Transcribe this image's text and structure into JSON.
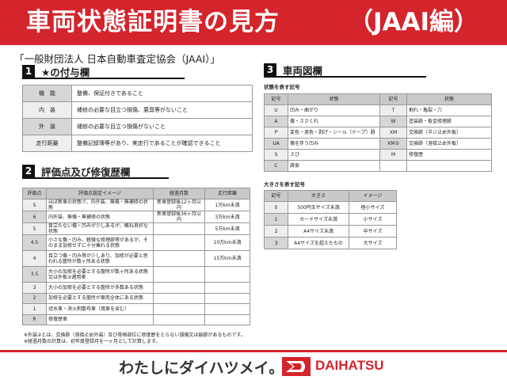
{
  "title": {
    "main": "車両状態証明書の見方",
    "suffix": "（JAAI編）"
  },
  "subtitle": "「一般財団法人 日本自動車査定協会（JAAI）」",
  "section1": {
    "num": "1",
    "title": "★の付与欄",
    "rows": [
      {
        "k": "機　能",
        "v": "整備、保証付きであること"
      },
      {
        "k": "内　装",
        "v": "補修の必要な目立つ損傷、悪臭等がないこと"
      },
      {
        "k": "外　装",
        "v": "補修の必要な目立つ損傷がないこと"
      },
      {
        "k": "走行距離",
        "v": "整備記録簿等があり、実走行であることが確認できること"
      }
    ]
  },
  "section2": {
    "num": "2",
    "title": "評価点及び修復歴欄",
    "headers": [
      "評価点",
      "評価点設定イメージ",
      "経過月数",
      "走行距離"
    ],
    "rows": [
      [
        "S",
        "ほぼ新車の状態で、内外装、無傷・無補修の状態",
        "新車登録後12ヶ月以内",
        "1万km未満"
      ],
      [
        "6",
        "内外装、無傷・無補修の状態",
        "新車登録後36ヶ月以内",
        "3万km未満"
      ],
      [
        "5",
        "目立たない傷・凹みが少しあるが、概ね良好な状態",
        "",
        "5万km未満"
      ],
      [
        "4.5",
        "小さな傷・凹み、軽微な修理跡等があるが、そのまま加修せずに十分乗れる状態",
        "",
        "10万km未満"
      ],
      [
        "4",
        "目立つ傷・凹み等が少しあり、加修が必要と思われる箇所が数ヶ所ある状態",
        "",
        "15万km未満"
      ],
      [
        "3.5",
        "大小の加修を必要とする箇所が数ヶ所ある状態又は外板②適用車",
        "",
        ""
      ],
      [
        "3",
        "大小の加修を必要とする箇所が多数ある状態",
        "",
        ""
      ],
      [
        "2",
        "加修を必要とする箇所が車両全体にある状態",
        "",
        ""
      ],
      [
        "1",
        "冠水車・消火剤散布車（焼車を含む）",
        "",
        ""
      ],
      [
        "R",
        "修復歴車",
        "",
        ""
      ]
    ]
  },
  "section3": {
    "num": "3",
    "title": "車両図欄",
    "state_caption": "状態を表す記号",
    "state_headers": [
      "記号",
      "状態",
      "記号",
      "状態"
    ],
    "state_rows": [
      [
        "U",
        "凹み・曲がり",
        "T",
        "割れ・亀裂・穴"
      ],
      [
        "A",
        "傷・ささくれ",
        "W",
        "塗装跡・板金修理跡"
      ],
      [
        "P",
        "変色・退色・剥げ・シール（テープ）跡",
        "XM",
        "交換跡（ネジ止め外板）"
      ],
      [
        "UA",
        "傷を伴う凹み",
        "XM②",
        "交換跡（溶接止め外板）"
      ],
      [
        "S",
        "さび",
        "M",
        "修復歴"
      ],
      [
        "C",
        "腐食",
        "",
        ""
      ]
    ],
    "size_caption": "大きさを表す記号",
    "size_headers": [
      "記号",
      "大きさ",
      "イメージ"
    ],
    "size_rows": [
      [
        "0",
        "500円玉サイズ未満",
        "極小サイズ"
      ],
      [
        "1",
        "カードサイズ未満",
        "小サイズ"
      ],
      [
        "2",
        "A4サイズ未満",
        "中サイズ"
      ],
      [
        "3",
        "A4サイズを超えたもの",
        "大サイズ"
      ]
    ]
  },
  "notes": [
    "※外装②とは、交換跡（溶接止め外装）及び骨格部位に修復歴をとらない損傷又は痕跡があるものです。",
    "※経過月数の計算は、初年度登録月を一ヶ月として計算します。"
  ],
  "footer": {
    "slogan": "わたしにダイハツメイ。",
    "brand": "DAIHATSU"
  },
  "colors": {
    "accent": "#d4242c"
  }
}
